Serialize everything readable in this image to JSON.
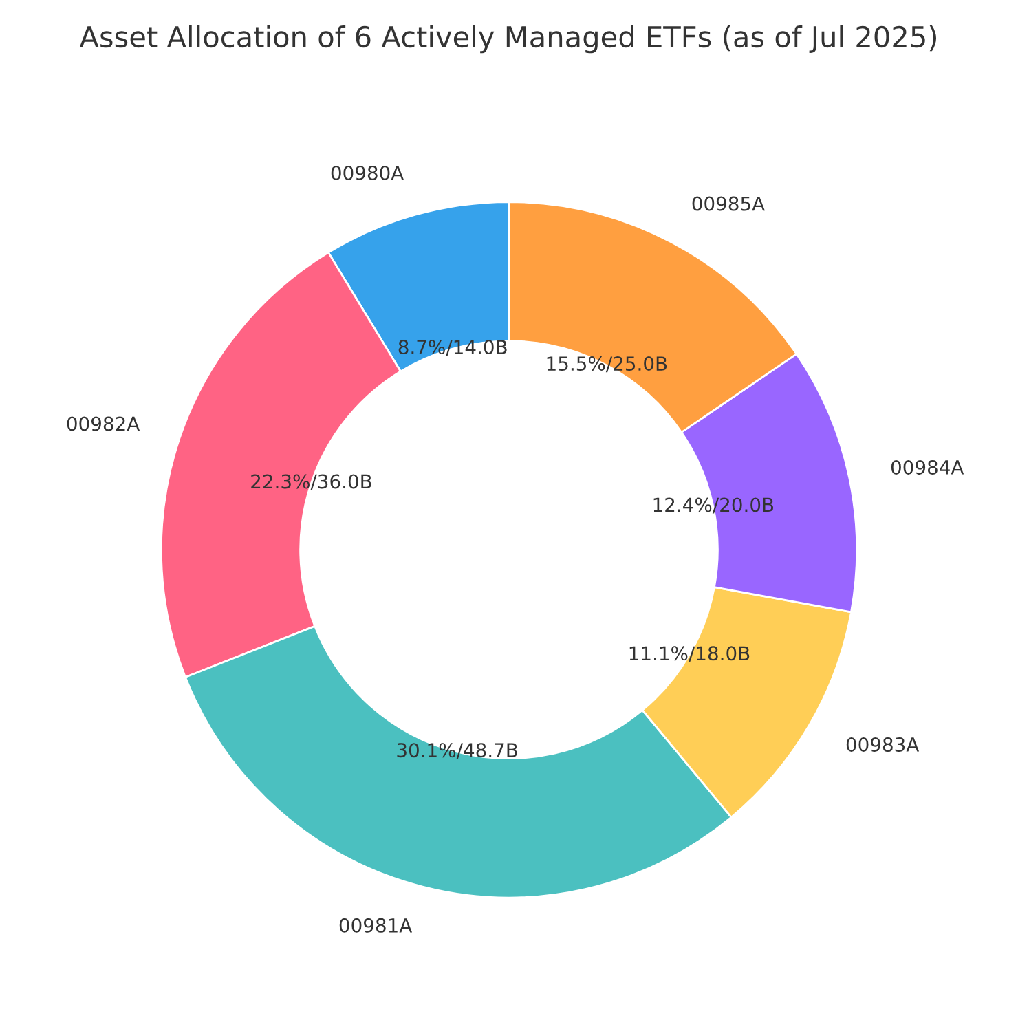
{
  "chart_data": {
    "type": "donut",
    "title": "Asset Allocation of 6 Actively Managed ETFs (as of Jul 2025)",
    "categories": [
      "00980A",
      "00982A",
      "00981A",
      "00983A",
      "00984A",
      "00985A"
    ],
    "values": [
      8.7,
      22.3,
      30.1,
      11.1,
      12.4,
      15.5
    ],
    "colors": [
      "#36a2eb",
      "#ff6384",
      "#4bc0c0",
      "#ffce56",
      "#9966ff",
      "#ff9f40"
    ],
    "value_labels": [
      "8.7%/14.0B",
      "22.3%/36.0B",
      "30.1%/48.7B",
      "11.1%/18.0B",
      "12.4%/20.0B",
      "15.5%/25.0B"
    ]
  }
}
